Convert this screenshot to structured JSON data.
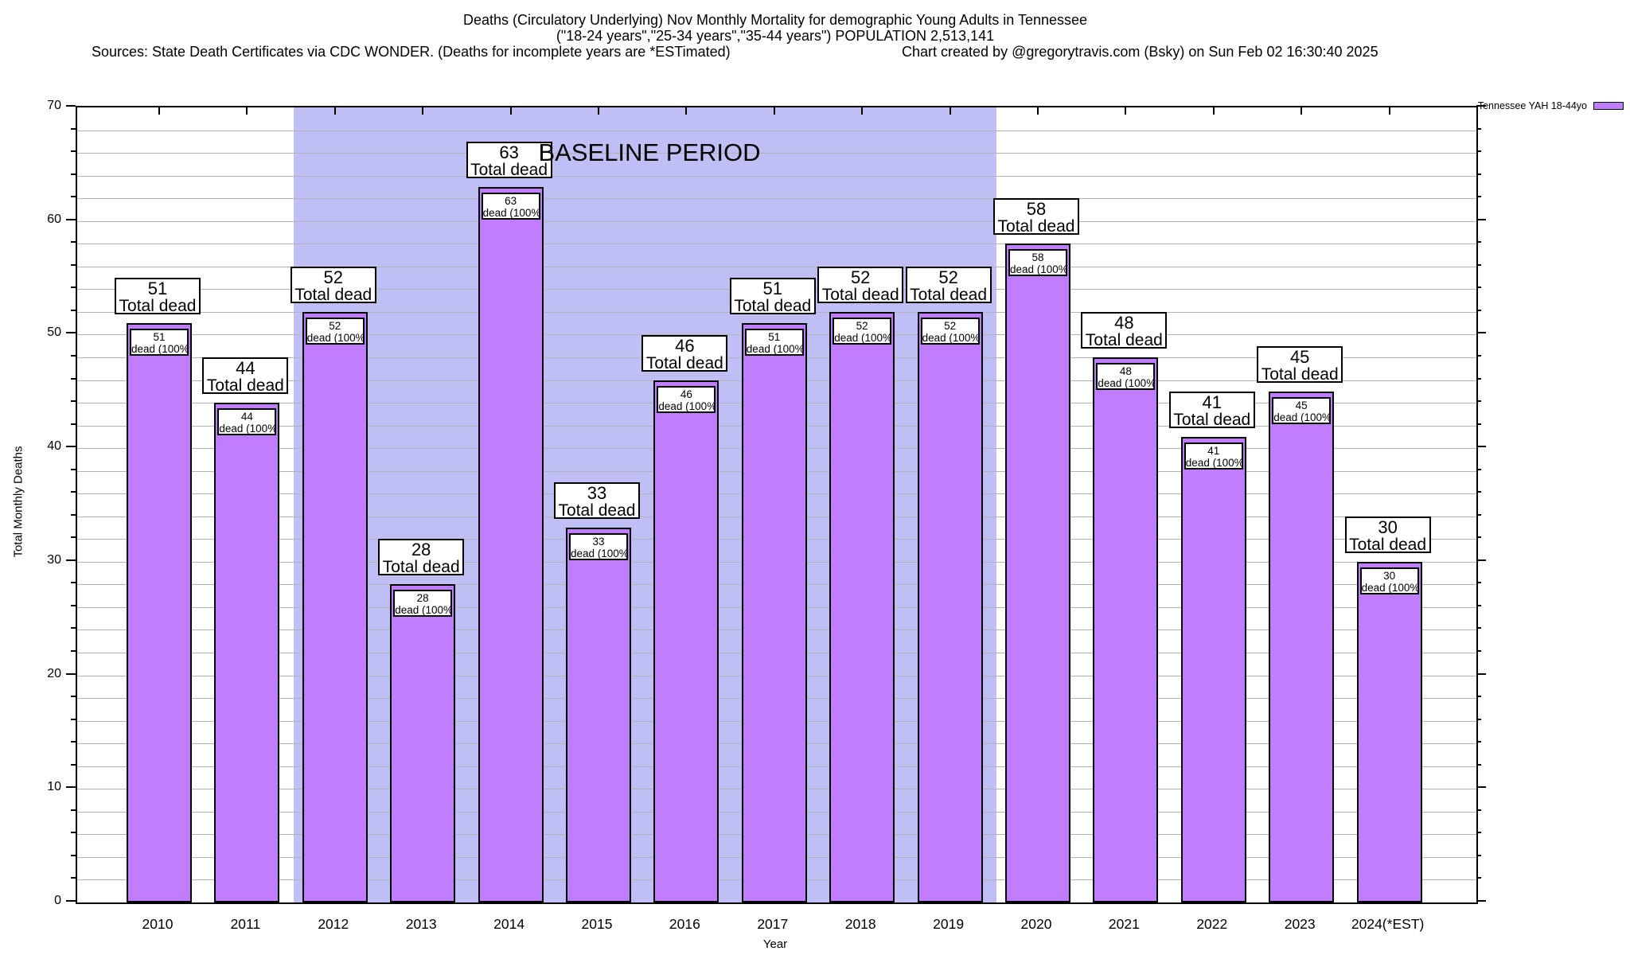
{
  "header": {
    "title_line1": "Deaths (Circulatory Underlying) Nov Monthly Mortality for demographic Young Adults in Tennessee",
    "title_line2": "(\"18-24 years\",\"25-34 years\",\"35-44 years\") POPULATION 2,513,141",
    "sources_note": "Sources: State Death Certificates via CDC WONDER. (Deaths for incomplete years are *ESTimated)",
    "credit_note": "Chart created by @gregorytravis.com (Bsky) on Sun Feb 02 16:30:40 2025"
  },
  "legend": {
    "label": "Tennessee YAH 18-44yo",
    "swatch_color": "#bf7dfc"
  },
  "chart_data": {
    "type": "bar",
    "title": "Deaths (Circulatory Underlying) Nov Monthly Mortality for demographic Young Adults in Tennessee",
    "subtitle": "(\"18-24 years\",\"25-34 years\",\"35-44 years\") POPULATION 2,513,141",
    "series_name": "Tennessee YAH 18-44yo",
    "categories": [
      "2010",
      "2011",
      "2012",
      "2013",
      "2014",
      "2015",
      "2016",
      "2017",
      "2018",
      "2019",
      "2020",
      "2021",
      "2022",
      "2023",
      "2024(*EST)"
    ],
    "values": [
      51,
      44,
      52,
      28,
      63,
      33,
      46,
      51,
      52,
      52,
      58,
      48,
      41,
      45,
      30
    ],
    "xlabel": "Year",
    "ylabel": "Total Monthly Deaths",
    "ylim": [
      0,
      70
    ],
    "ytick_major_step": 10,
    "ytick_minor_step": 2,
    "grid": "horizontal lines every 2 units",
    "legend_position": "top-right outside plot",
    "bar_color": "#bf7dfc",
    "bar_border_color": "#000000",
    "gridline_color": "#b3b3b3",
    "bar_outer_label_suffix": "Total dead",
    "bar_inner_label_suffix": "dead (100%)",
    "baseline_region": {
      "label": "BASELINE PERIOD",
      "start_category": "2012",
      "end_category": "2019",
      "color": "#bfbff5"
    }
  }
}
